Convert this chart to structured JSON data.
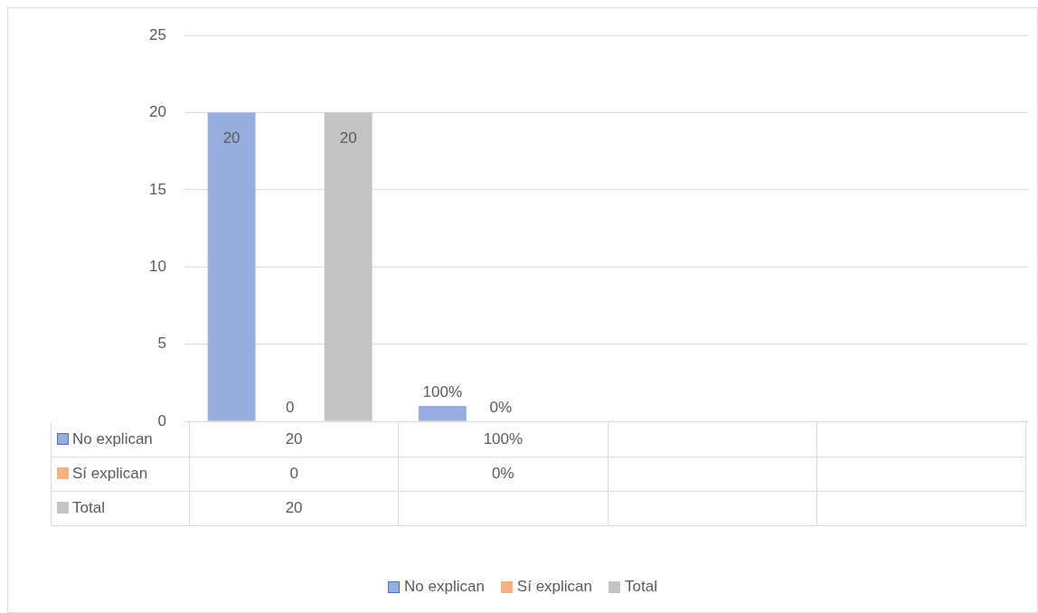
{
  "chart_data": {
    "type": "bar",
    "categories": [
      null,
      null,
      null,
      null
    ],
    "series": [
      {
        "name": "No explican",
        "color": "#97acdf",
        "values": [
          20,
          1,
          null,
          null
        ],
        "value_labels": [
          "20",
          "100%",
          null,
          null
        ]
      },
      {
        "name": "Sí explican",
        "color": "#f4b183",
        "values": [
          0,
          0,
          null,
          null
        ],
        "value_labels": [
          "0",
          "0%",
          null,
          null
        ]
      },
      {
        "name": "Total",
        "color": "#c4c4c4",
        "values": [
          20,
          null,
          null,
          null
        ],
        "value_labels": [
          "20",
          null,
          null,
          null
        ]
      }
    ],
    "ylim": [
      0,
      25
    ],
    "yticks": [
      0,
      5,
      10,
      15,
      20,
      25
    ],
    "grid": "y",
    "legend": "bottom"
  }
}
